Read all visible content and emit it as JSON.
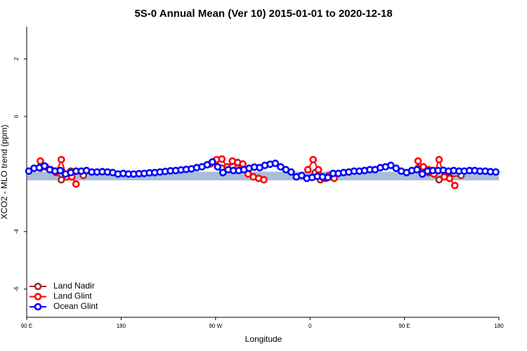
{
  "chart_data": {
    "type": "line",
    "title": "5S-0 Annual Mean (Ver 10)   2015-01-01 to 2020-12-18",
    "x_label": "Longitude",
    "y_label": "XCO2 - MLO trend (ppm)",
    "xlim": [
      90,
      540
    ],
    "xticks": [
      {
        "value": 90,
        "label": "90 E"
      },
      {
        "value": 180,
        "label": "180"
      },
      {
        "value": 270,
        "label": "90 W"
      },
      {
        "value": 360,
        "label": "0"
      },
      {
        "value": 450,
        "label": "90 E"
      },
      {
        "value": 540,
        "label": "180"
      }
    ],
    "ylim": [
      -6.98,
      3.12
    ],
    "yticks": [
      -6,
      -4,
      0,
      2
    ],
    "legend": "bottom-left",
    "band": {
      "color": "#a9bdd8",
      "range": [
        -2.22,
        -1.92
      ]
    },
    "series": [
      {
        "name": "Land Nadir",
        "color": "#a52a2a",
        "x": [
          103,
          108,
          118,
          123,
          132,
          144,
          200,
          276,
          291,
          301,
          340,
          365,
          370,
          375,
          420,
          463,
          473,
          483,
          493,
          504
        ],
        "values": [
          -1.8,
          -1.75,
          -1.9,
          -2.2,
          -1.9,
          -2.05,
          null,
          -1.8,
          -1.6,
          -1.85,
          null,
          -1.95,
          -2.2,
          -2.15,
          null,
          -1.8,
          -1.95,
          -2.2,
          -2.1,
          -2.05
        ]
      },
      {
        "name": "Land Glint",
        "color": "#ff0000",
        "x": [
          103,
          108,
          113,
          118,
          123,
          128,
          133,
          137,
          200,
          265,
          271,
          276,
          281,
          286,
          291,
          296,
          301,
          306,
          311,
          316,
          340,
          358,
          363,
          368,
          373,
          378,
          383,
          420,
          463,
          468,
          473,
          478,
          483,
          488,
          493,
          498
        ],
        "values": [
          -1.55,
          -1.75,
          -1.85,
          -1.95,
          -1.5,
          -2.1,
          -2.1,
          -2.35,
          null,
          -1.65,
          -1.5,
          -1.48,
          -1.75,
          -1.55,
          -1.8,
          -1.65,
          -2.0,
          -2.1,
          -2.15,
          -2.2,
          null,
          -1.85,
          -1.5,
          -1.85,
          -2.15,
          -2.05,
          -2.15,
          null,
          -1.55,
          -1.75,
          -1.85,
          -2.0,
          -1.5,
          -2.1,
          -2.15,
          -2.4
        ]
      },
      {
        "name": "Ocean Glint",
        "color": "#0000ff",
        "x": [
          92,
          97,
          102,
          107,
          112,
          117,
          122,
          127,
          132,
          137,
          142,
          147,
          152,
          157,
          162,
          167,
          172,
          177,
          182,
          187,
          192,
          197,
          202,
          207,
          212,
          217,
          222,
          227,
          232,
          237,
          242,
          247,
          252,
          257,
          262,
          267,
          272,
          277,
          282,
          287,
          292,
          297,
          302,
          307,
          312,
          317,
          322,
          327,
          332,
          337,
          342,
          347,
          352,
          357,
          362,
          367,
          372,
          377,
          382,
          387,
          392,
          397,
          402,
          407,
          412,
          417,
          422,
          427,
          432,
          437,
          442,
          447,
          452,
          457,
          462,
          467,
          472,
          477,
          482,
          487,
          492,
          497,
          502,
          507,
          512,
          517,
          522,
          527,
          532,
          537
        ],
        "values": [
          -1.9,
          -1.8,
          -1.78,
          -1.72,
          -1.85,
          -1.9,
          -1.88,
          -2.0,
          -1.95,
          -1.9,
          -1.9,
          -1.88,
          -1.93,
          -1.93,
          -1.92,
          -1.93,
          -1.95,
          -2.0,
          -1.98,
          -2.0,
          -2.0,
          -1.99,
          -1.98,
          -1.96,
          -1.95,
          -1.93,
          -1.91,
          -1.89,
          -1.88,
          -1.86,
          -1.84,
          -1.82,
          -1.78,
          -1.75,
          -1.68,
          -1.58,
          -1.75,
          -1.95,
          -1.85,
          -1.88,
          -1.88,
          -1.85,
          -1.8,
          -1.76,
          -1.78,
          -1.7,
          -1.66,
          -1.63,
          -1.75,
          -1.85,
          -1.93,
          -2.1,
          -2.05,
          -2.15,
          -2.12,
          -2.08,
          -2.1,
          -2.12,
          -1.98,
          -1.98,
          -1.95,
          -1.93,
          -1.9,
          -1.9,
          -1.88,
          -1.85,
          -1.85,
          -1.78,
          -1.75,
          -1.7,
          -1.8,
          -1.9,
          -1.95,
          -1.88,
          -1.85,
          -2.0,
          -1.9,
          -1.88,
          -1.88,
          -1.87,
          -1.9,
          -1.88,
          -1.9,
          -1.9,
          -1.88,
          -1.88,
          -1.9,
          -1.9,
          -1.92,
          -1.93
        ]
      }
    ]
  }
}
